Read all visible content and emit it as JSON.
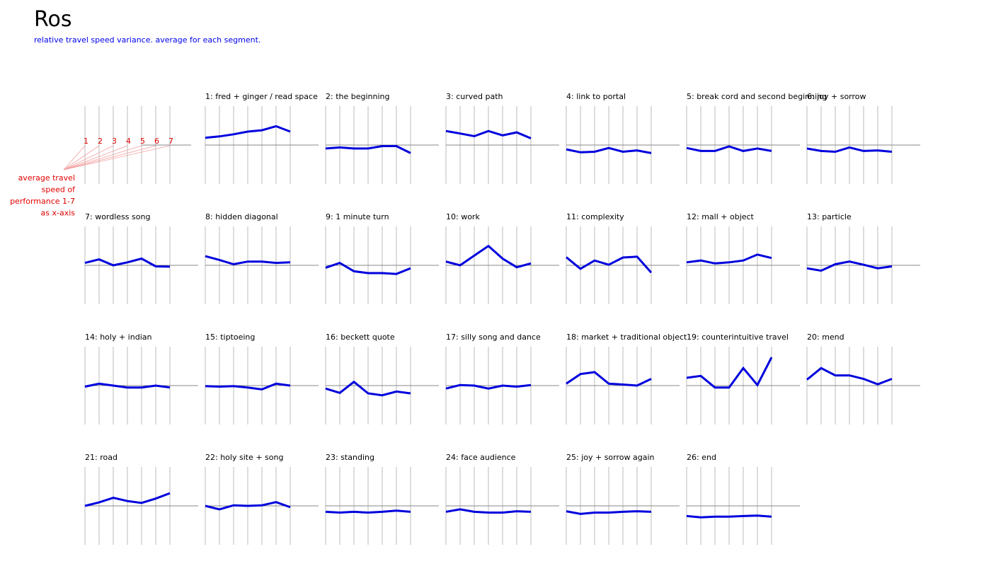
{
  "header": {
    "title": "Ros",
    "subtitle": "relative travel speed variance. average for each segment."
  },
  "legend": {
    "numbers": [
      "1",
      "2",
      "3",
      "4",
      "5",
      "6",
      "7"
    ],
    "lines": [
      "average travel",
      "speed of",
      "performance 1-7",
      "as x-axis"
    ],
    "color": "#e00000"
  },
  "colors": {
    "series": "#0000dd",
    "grid": "#bbbbbb",
    "baseline": "#888888",
    "subtitle": "#0000ee",
    "legend": "#e00000"
  },
  "chart_data": {
    "type": "line",
    "x": [
      1,
      2,
      3,
      4,
      5,
      6,
      7
    ],
    "ylim": [
      -1.5,
      1.5
    ],
    "grid": true,
    "baseline": 0,
    "panels": [
      {
        "title": "1: fred + ginger / read space",
        "values": [
          0.27,
          0.32,
          0.4,
          0.5,
          0.55,
          0.7,
          0.5
        ]
      },
      {
        "title": "2: the beginning",
        "values": [
          -0.13,
          -0.09,
          -0.13,
          -0.13,
          -0.04,
          -0.04,
          -0.3
        ]
      },
      {
        "title": "3: curved path",
        "values": [
          0.52,
          0.43,
          0.33,
          0.52,
          0.36,
          0.47,
          0.25
        ]
      },
      {
        "title": "4: link to portal",
        "values": [
          -0.16,
          -0.27,
          -0.25,
          -0.11,
          -0.25,
          -0.2,
          -0.3
        ]
      },
      {
        "title": "5: break cord and second beginning",
        "values": [
          -0.11,
          -0.22,
          -0.22,
          -0.05,
          -0.22,
          -0.13,
          -0.22
        ]
      },
      {
        "title": "6: joy + sorrow",
        "values": [
          -0.13,
          -0.22,
          -0.25,
          -0.09,
          -0.22,
          -0.2,
          -0.25
        ]
      },
      {
        "title": "7: wordless song",
        "values": [
          0.09,
          0.22,
          0.0,
          0.11,
          0.25,
          -0.04,
          -0.05
        ]
      },
      {
        "title": "8: hidden diagonal",
        "values": [
          0.34,
          0.2,
          0.04,
          0.14,
          0.14,
          0.09,
          0.11
        ]
      },
      {
        "title": "9: 1 minute turn",
        "values": [
          -0.09,
          0.09,
          -0.22,
          -0.29,
          -0.29,
          -0.32,
          -0.11
        ]
      },
      {
        "title": "10: work",
        "values": [
          0.14,
          0.0,
          0.36,
          0.72,
          0.25,
          -0.07,
          0.07
        ]
      },
      {
        "title": "11: complexity",
        "values": [
          0.3,
          -0.13,
          0.18,
          0.02,
          0.29,
          0.32,
          -0.27
        ]
      },
      {
        "title": "12: mall + object",
        "values": [
          0.11,
          0.18,
          0.07,
          0.11,
          0.18,
          0.4,
          0.27
        ]
      },
      {
        "title": "13: particle",
        "values": [
          -0.11,
          -0.2,
          0.04,
          0.14,
          0.02,
          -0.11,
          -0.04
        ]
      },
      {
        "title": "14: holy + indian",
        "values": [
          -0.04,
          0.07,
          0.0,
          -0.07,
          -0.07,
          0.0,
          -0.07
        ]
      },
      {
        "title": "15: tiptoeing",
        "values": [
          -0.02,
          -0.04,
          -0.02,
          -0.07,
          -0.14,
          0.07,
          0.0
        ]
      },
      {
        "title": "16: beckett quote",
        "values": [
          -0.11,
          -0.27,
          0.14,
          -0.29,
          -0.36,
          -0.22,
          -0.29
        ]
      },
      {
        "title": "17: silly song and dance",
        "values": [
          -0.11,
          0.02,
          0.0,
          -0.11,
          0.0,
          -0.04,
          0.02
        ]
      },
      {
        "title": "18: market + traditional object",
        "values": [
          0.07,
          0.43,
          0.5,
          0.07,
          0.04,
          0.0,
          0.25
        ]
      },
      {
        "title": "19: counterintuitive travel",
        "values": [
          0.29,
          0.36,
          -0.07,
          -0.07,
          0.65,
          0.02,
          1.05
        ]
      },
      {
        "title": "20: mend",
        "values": [
          0.22,
          0.65,
          0.38,
          0.38,
          0.25,
          0.05,
          0.25
        ]
      },
      {
        "title": "21: road",
        "values": [
          0.0,
          0.13,
          0.3,
          0.18,
          0.11,
          0.27,
          0.47
        ]
      },
      {
        "title": "22: holy site + song",
        "values": [
          0.0,
          -0.13,
          0.02,
          0.0,
          0.02,
          0.14,
          -0.05
        ]
      },
      {
        "title": "23: standing",
        "values": [
          -0.22,
          -0.25,
          -0.22,
          -0.25,
          -0.22,
          -0.18,
          -0.22
        ]
      },
      {
        "title": "24: face audience",
        "values": [
          -0.22,
          -0.13,
          -0.22,
          -0.25,
          -0.25,
          -0.2,
          -0.22
        ]
      },
      {
        "title": "25: joy + sorrow again",
        "values": [
          -0.2,
          -0.3,
          -0.25,
          -0.25,
          -0.22,
          -0.2,
          -0.22
        ]
      },
      {
        "title": "26: end",
        "values": [
          -0.38,
          -0.43,
          -0.4,
          -0.4,
          -0.38,
          -0.36,
          -0.4
        ]
      }
    ]
  }
}
